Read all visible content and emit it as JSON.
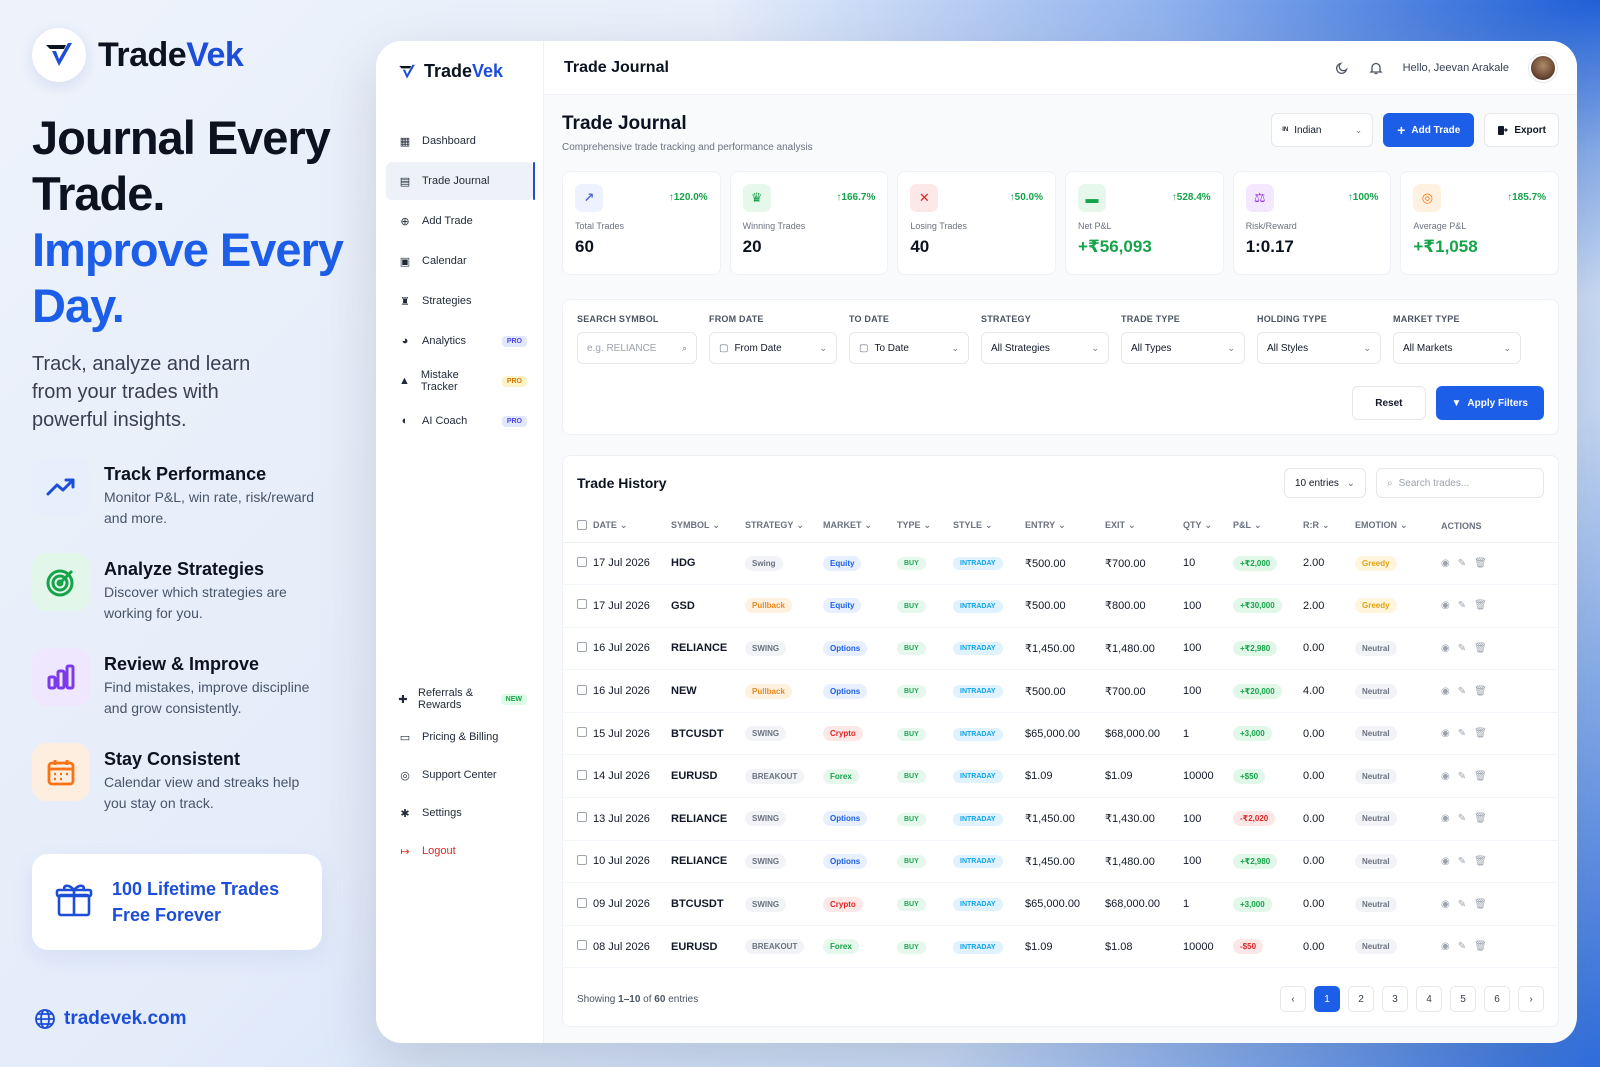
{
  "promo": {
    "brand": {
      "prefix": "Trade",
      "suffix": "Vek"
    },
    "headline_black": "Journal Every Trade.",
    "headline_blue": "Improve Every Day.",
    "lead": "Track, analyze and learn from your trades with powerful insights.",
    "features": [
      {
        "title": "Track Performance",
        "desc": "Monitor P&L, win rate, risk/reward and more.",
        "icon": "trend-icon",
        "color": "#1d4ed8"
      },
      {
        "title": "Analyze Strategies",
        "desc": "Discover which strategies are working for you.",
        "icon": "target-icon",
        "color": "#16a34a"
      },
      {
        "title": "Review & Improve",
        "desc": "Find mistakes, improve discipline and grow consistently.",
        "icon": "bar-chart-icon",
        "color": "#7c3aed"
      },
      {
        "title": "Stay Consistent",
        "desc": "Calendar view and streaks help you stay on track.",
        "icon": "calendar-icon",
        "color": "#f97316"
      }
    ],
    "gift": {
      "line1": "100 Lifetime Trades",
      "line2": "Free Forever"
    },
    "website": "tradevek.com"
  },
  "app": {
    "brand": {
      "prefix": "Trade",
      "suffix": "Vek"
    },
    "nav": [
      {
        "label": "Dashboard",
        "icon": "grid-icon"
      },
      {
        "label": "Trade Journal",
        "icon": "book-icon",
        "active": true
      },
      {
        "label": "Add Trade",
        "icon": "plus-circle-icon"
      },
      {
        "label": "Calendar",
        "icon": "calendar-icon"
      },
      {
        "label": "Strategies",
        "icon": "strategy-icon"
      },
      {
        "label": "Analytics",
        "icon": "pie-icon",
        "badge": "PRO"
      },
      {
        "label": "Mistake Tracker",
        "icon": "warning-icon",
        "badge": "PRO"
      },
      {
        "label": "AI Coach",
        "icon": "brain-icon",
        "badge": "PRO"
      }
    ],
    "nav_bottom": [
      {
        "label": "Referrals & Rewards",
        "icon": "gift-icon",
        "badge": "NEW"
      },
      {
        "label": "Pricing & Billing",
        "icon": "card-icon"
      },
      {
        "label": "Support Center",
        "icon": "support-icon"
      },
      {
        "label": "Settings",
        "icon": "gear-icon"
      },
      {
        "label": "Logout",
        "icon": "logout-icon"
      }
    ],
    "topbar": {
      "title": "Trade Journal",
      "greeting": "Hello, Jeevan Arakale"
    },
    "page": {
      "title": "Trade Journal",
      "subtitle": "Comprehensive trade tracking and performance analysis",
      "market_select": "Indian",
      "market_flag": "IN",
      "add_trade": "Add Trade",
      "export": "Export"
    },
    "stats": [
      {
        "label": "Total Trades",
        "value": "60",
        "change": "120.0%",
        "icon": "chart-line-icon",
        "bg": "#eef2ff",
        "fg": "#4f6bd8"
      },
      {
        "label": "Winning Trades",
        "value": "20",
        "change": "166.7%",
        "icon": "trophy-icon",
        "bg": "#e6f7ec",
        "fg": "#16a34a"
      },
      {
        "label": "Losing Trades",
        "value": "40",
        "change": "50.0%",
        "icon": "x-icon",
        "bg": "#fde8e8",
        "fg": "#dc2626"
      },
      {
        "label": "Net P&L",
        "value": "+₹56,093",
        "change": "528.4%",
        "icon": "wallet-icon",
        "bg": "#e6f7ec",
        "fg": "#16a34a",
        "green": true
      },
      {
        "label": "Risk/Reward",
        "value": "1:0.17",
        "change": "100%",
        "icon": "scale-icon",
        "bg": "#f3e8ff",
        "fg": "#9333ea"
      },
      {
        "label": "Average P&L",
        "value": "+₹1,058",
        "change": "185.7%",
        "icon": "target-icon",
        "bg": "#fff1e0",
        "fg": "#f97316",
        "green": true
      }
    ],
    "filters": {
      "search_label": "SEARCH SYMBOL",
      "search_placeholder": "e.g. RELIANCE",
      "from_label": "FROM DATE",
      "from_value": "From Date",
      "to_label": "TO DATE",
      "to_value": "To Date",
      "strategy_label": "STRATEGY",
      "strategy_value": "All Strategies",
      "type_label": "TRADE TYPE",
      "type_value": "All Types",
      "holding_label": "HOLDING TYPE",
      "holding_value": "All Styles",
      "market_label": "MARKET TYPE",
      "market_value": "All Markets",
      "reset": "Reset",
      "apply": "Apply Filters"
    },
    "history": {
      "title": "Trade History",
      "entries_select": "10 entries",
      "search_placeholder": "Search trades...",
      "columns": [
        "DATE",
        "SYMBOL",
        "STRATEGY",
        "MARKET",
        "TYPE",
        "STYLE",
        "ENTRY",
        "EXIT",
        "QTY",
        "P&L",
        "R:R",
        "EMOTION",
        "ACTIONS"
      ],
      "rows": [
        {
          "date": "17 Jul 2026",
          "symbol": "HDG",
          "strategy": "Swing",
          "strategy_style": "grey",
          "market": "Equity",
          "market_style": "blue",
          "type": "BUY",
          "style": "INTRADAY",
          "entry": "₹500.00",
          "exit": "₹700.00",
          "qty": "10",
          "pnl": "+₹2,000",
          "pnl_pos": true,
          "rr": "2.00",
          "emotion": "Greedy",
          "emotion_style": "amber"
        },
        {
          "date": "17 Jul 2026",
          "symbol": "GSD",
          "strategy": "Pullback",
          "strategy_style": "orange",
          "market": "Equity",
          "market_style": "blue",
          "type": "BUY",
          "style": "INTRADAY",
          "entry": "₹500.00",
          "exit": "₹800.00",
          "qty": "100",
          "pnl": "+₹30,000",
          "pnl_pos": true,
          "rr": "2.00",
          "emotion": "Greedy",
          "emotion_style": "amber"
        },
        {
          "date": "16 Jul 2026",
          "symbol": "RELIANCE",
          "strategy": "SWING",
          "strategy_style": "grey",
          "market": "Options",
          "market_style": "blue",
          "type": "BUY",
          "style": "INTRADAY",
          "entry": "₹1,450.00",
          "exit": "₹1,480.00",
          "qty": "100",
          "pnl": "+₹2,980",
          "pnl_pos": true,
          "rr": "0.00",
          "emotion": "Neutral",
          "emotion_style": "grey"
        },
        {
          "date": "16 Jul 2026",
          "symbol": "NEW",
          "strategy": "Pullback",
          "strategy_style": "orange",
          "market": "Options",
          "market_style": "blue",
          "type": "BUY",
          "style": "INTRADAY",
          "entry": "₹500.00",
          "exit": "₹700.00",
          "qty": "100",
          "pnl": "+₹20,000",
          "pnl_pos": true,
          "rr": "4.00",
          "emotion": "Neutral",
          "emotion_style": "grey"
        },
        {
          "date": "15 Jul 2026",
          "symbol": "BTCUSDT",
          "strategy": "SWING",
          "strategy_style": "grey",
          "market": "Crypto",
          "market_style": "red",
          "type": "BUY",
          "style": "INTRADAY",
          "entry": "$65,000.00",
          "exit": "$68,000.00",
          "qty": "1",
          "pnl": "+3,000",
          "pnl_pos": true,
          "rr": "0.00",
          "emotion": "Neutral",
          "emotion_style": "grey"
        },
        {
          "date": "14 Jul 2026",
          "symbol": "EURUSD",
          "strategy": "BREAKOUT",
          "strategy_style": "grey",
          "market": "Forex",
          "market_style": "green",
          "type": "BUY",
          "style": "INTRADAY",
          "entry": "$1.09",
          "exit": "$1.09",
          "qty": "10000",
          "pnl": "+$50",
          "pnl_pos": true,
          "rr": "0.00",
          "emotion": "Neutral",
          "emotion_style": "grey"
        },
        {
          "date": "13 Jul 2026",
          "symbol": "RELIANCE",
          "strategy": "SWING",
          "strategy_style": "grey",
          "market": "Options",
          "market_style": "blue",
          "type": "BUY",
          "style": "INTRADAY",
          "entry": "₹1,450.00",
          "exit": "₹1,430.00",
          "qty": "100",
          "pnl": "-₹2,020",
          "pnl_pos": false,
          "rr": "0.00",
          "emotion": "Neutral",
          "emotion_style": "grey"
        },
        {
          "date": "10 Jul 2026",
          "symbol": "RELIANCE",
          "strategy": "SWING",
          "strategy_style": "grey",
          "market": "Options",
          "market_style": "blue",
          "type": "BUY",
          "style": "INTRADAY",
          "entry": "₹1,450.00",
          "exit": "₹1,480.00",
          "qty": "100",
          "pnl": "+₹2,980",
          "pnl_pos": true,
          "rr": "0.00",
          "emotion": "Neutral",
          "emotion_style": "grey"
        },
        {
          "date": "09 Jul 2026",
          "symbol": "BTCUSDT",
          "strategy": "SWING",
          "strategy_style": "grey",
          "market": "Crypto",
          "market_style": "red",
          "type": "BUY",
          "style": "INTRADAY",
          "entry": "$65,000.00",
          "exit": "$68,000.00",
          "qty": "1",
          "pnl": "+3,000",
          "pnl_pos": true,
          "rr": "0.00",
          "emotion": "Neutral",
          "emotion_style": "grey"
        },
        {
          "date": "08 Jul 2026",
          "symbol": "EURUSD",
          "strategy": "BREAKOUT",
          "strategy_style": "grey",
          "market": "Forex",
          "market_style": "green",
          "type": "BUY",
          "style": "INTRADAY",
          "entry": "$1.09",
          "exit": "$1.08",
          "qty": "10000",
          "pnl": "-$50",
          "pnl_pos": false,
          "rr": "0.00",
          "emotion": "Neutral",
          "emotion_style": "grey"
        }
      ],
      "footer_prefix": "Showing",
      "footer_range": "1–10",
      "footer_of": "of",
      "footer_total": "60",
      "footer_suffix": "entries",
      "pages": [
        "1",
        "2",
        "3",
        "4",
        "5",
        "6"
      ]
    }
  }
}
